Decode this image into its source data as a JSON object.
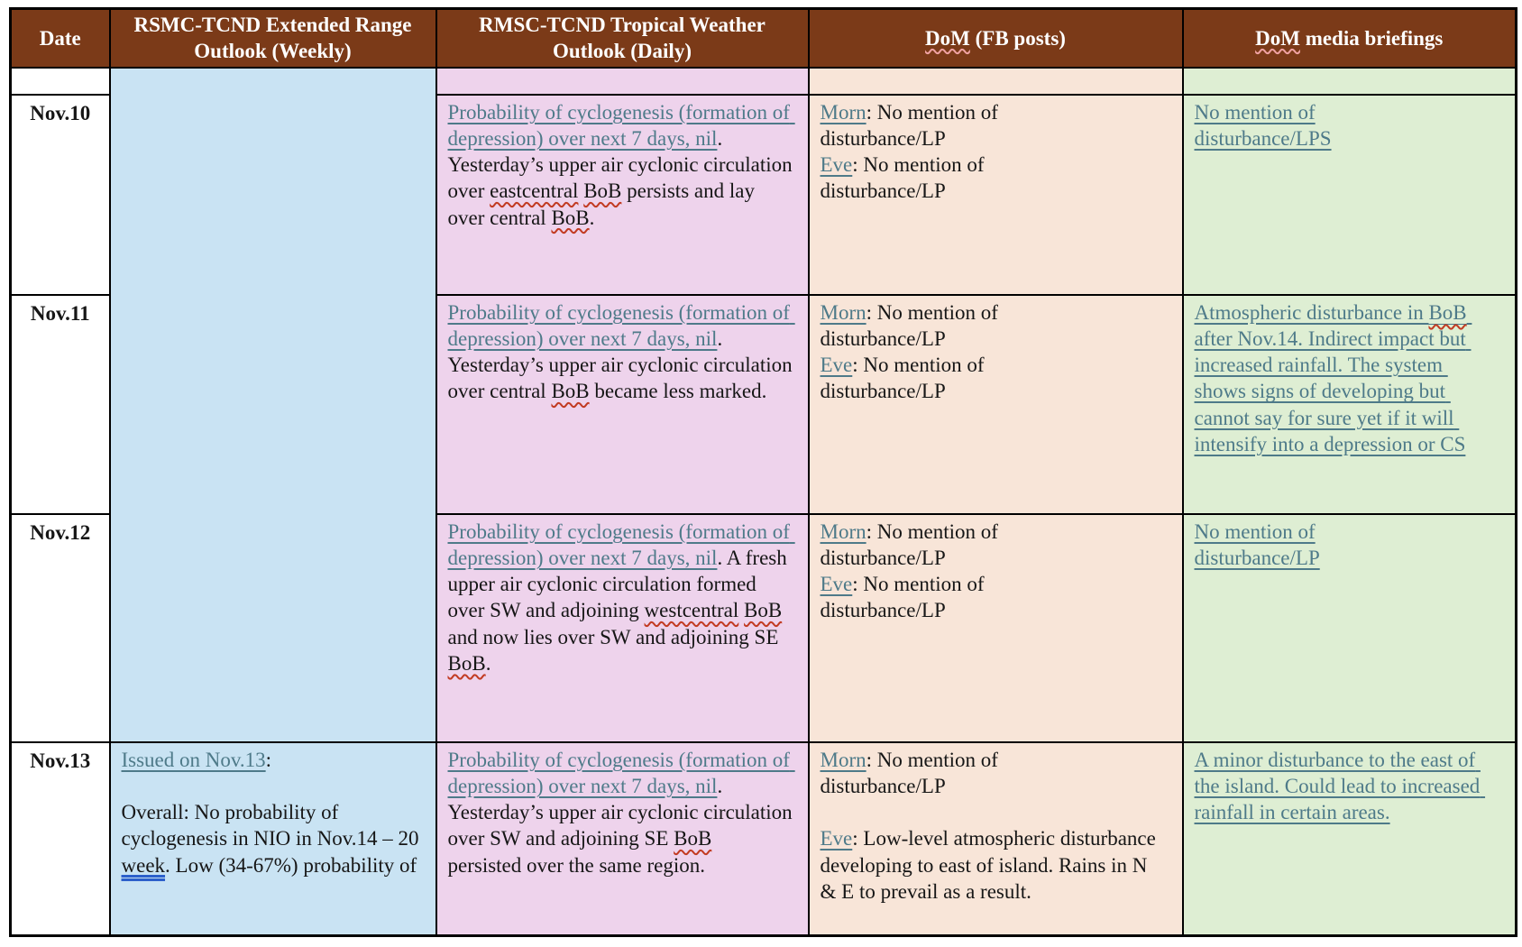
{
  "colors": {
    "header_bg": "#7b3a18",
    "header_text": "#ffffff",
    "col_weekly_bg": "#c9e3f3",
    "col_daily_bg": "#eed3ec",
    "col_fb_bg": "#f8e5d8",
    "col_media_bg": "#deeed3",
    "link_teal": "#4e7a89",
    "spell_red": "#c23b22",
    "gram_blue": "#2c5fcb",
    "border_black": "#000000"
  },
  "table": {
    "headers": [
      {
        "segments": [
          {
            "t": "Date",
            "s": "plain"
          }
        ]
      },
      {
        "segments": [
          {
            "t": "RSMC-TCND Extended Range Outlook (Weekly)",
            "s": "plain"
          }
        ]
      },
      {
        "segments": [
          {
            "t": "RMSC-TCND Tropical Weather Outlook (Daily)",
            "s": "plain"
          }
        ]
      },
      {
        "segments": [
          {
            "t": "DoM",
            "s": "sp"
          },
          {
            "t": " (FB posts)",
            "s": "plain"
          }
        ]
      },
      {
        "segments": [
          {
            "t": "DoM",
            "s": "sp"
          },
          {
            "t": " media briefings",
            "s": "plain"
          }
        ]
      }
    ],
    "rows": [
      {
        "date": "",
        "weekly": [],
        "daily": [],
        "fb": [],
        "media": []
      },
      {
        "date": "Nov.10",
        "daily": [
          {
            "t": "Probability of cyclogenesis (formation of depression) over next 7 days, nil",
            "s": "link"
          },
          {
            "t": ". Yesterday’s upper air cyclonic circulation over ",
            "s": "plain"
          },
          {
            "t": "eastcentral",
            "s": "sp"
          },
          {
            "t": " ",
            "s": "plain"
          },
          {
            "t": "BoB",
            "s": "sp"
          },
          {
            "t": " persists and lay over central ",
            "s": "plain"
          },
          {
            "t": "BoB",
            "s": "sp"
          },
          {
            "t": ".",
            "s": "plain"
          }
        ],
        "fb": [
          {
            "t": "Morn",
            "s": "link"
          },
          {
            "t": ": No mention of",
            "s": "plain"
          },
          {
            "s": "br"
          },
          {
            "t": "disturbance/LP",
            "s": "plain"
          },
          {
            "s": "br"
          },
          {
            "t": "Eve",
            "s": "link"
          },
          {
            "t": ": No mention of",
            "s": "plain"
          },
          {
            "s": "br"
          },
          {
            "t": "disturbance/LP",
            "s": "plain"
          }
        ],
        "media": [
          {
            "t": "No mention of",
            "s": "link"
          },
          {
            "s": "br"
          },
          {
            "t": "disturbance/LPS",
            "s": "link"
          }
        ]
      },
      {
        "date": "Nov.11",
        "daily": [
          {
            "t": "Probability of cyclogenesis (formation of depression) over next 7 days, nil",
            "s": "link"
          },
          {
            "t": ". Yesterday’s upper air cyclonic circulation over central ",
            "s": "plain"
          },
          {
            "t": "BoB",
            "s": "sp"
          },
          {
            "t": " became less marked.",
            "s": "plain"
          }
        ],
        "fb": [
          {
            "t": "Morn",
            "s": "link"
          },
          {
            "t": ": No mention of",
            "s": "plain"
          },
          {
            "s": "br"
          },
          {
            "t": "disturbance/LP",
            "s": "plain"
          },
          {
            "s": "br"
          },
          {
            "t": "Eve",
            "s": "link"
          },
          {
            "t": ": No mention of",
            "s": "plain"
          },
          {
            "s": "br"
          },
          {
            "t": "disturbance/LP",
            "s": "plain"
          }
        ],
        "media": [
          {
            "t": "Atmospheric disturbance in ",
            "s": "link"
          },
          {
            "t": "BoB",
            "s": "link-sp"
          },
          {
            "t": " after Nov.14. Indirect impact but increased rainfall. The system shows signs of developing but cannot say for sure yet if it will intensify into a depression or CS",
            "s": "link"
          }
        ]
      },
      {
        "date": "Nov.12",
        "daily": [
          {
            "t": "Probability of cyclogenesis (formation of depression) over next 7 days, nil",
            "s": "link"
          },
          {
            "t": ". A fresh upper air cyclonic circulation formed over SW and adjoining ",
            "s": "plain"
          },
          {
            "t": "westcentral",
            "s": "sp"
          },
          {
            "t": " ",
            "s": "plain"
          },
          {
            "t": "BoB",
            "s": "sp"
          },
          {
            "t": " and now lies over SW and adjoining SE ",
            "s": "plain"
          },
          {
            "t": "BoB",
            "s": "sp"
          },
          {
            "t": ".",
            "s": "plain"
          }
        ],
        "fb": [
          {
            "t": "Morn",
            "s": "link"
          },
          {
            "t": ": No mention of",
            "s": "plain"
          },
          {
            "s": "br"
          },
          {
            "t": "disturbance/LP",
            "s": "plain"
          },
          {
            "s": "br"
          },
          {
            "t": "Eve",
            "s": "link"
          },
          {
            "t": ": No mention of",
            "s": "plain"
          },
          {
            "s": "br"
          },
          {
            "t": "disturbance/LP",
            "s": "plain"
          }
        ],
        "media": [
          {
            "t": "No mention of",
            "s": "link"
          },
          {
            "s": "br"
          },
          {
            "t": "disturbance/LP",
            "s": "link"
          }
        ]
      },
      {
        "date": "Nov.13",
        "weekly": [
          {
            "t": "Issued on Nov.13",
            "s": "link"
          },
          {
            "t": ":",
            "s": "plain"
          },
          {
            "s": "br"
          },
          {
            "s": "br"
          },
          {
            "t": "Overall: No probability of cyclogenesis in NIO in Nov.14 – 20 ",
            "s": "plain"
          },
          {
            "t": "week",
            "s": "gr"
          },
          {
            "t": ". Low (34-67%) probability of",
            "s": "plain"
          }
        ],
        "daily": [
          {
            "t": "Probability of cyclogenesis (formation of depression) over next 7 days, nil",
            "s": "link"
          },
          {
            "t": ". Yesterday’s upper air cyclonic circulation over SW and adjoining SE ",
            "s": "plain"
          },
          {
            "t": "BoB",
            "s": "sp"
          },
          {
            "s": "br"
          },
          {
            "t": "persisted over the same region.",
            "s": "plain"
          }
        ],
        "fb": [
          {
            "t": "Morn",
            "s": "link"
          },
          {
            "t": ": No mention of",
            "s": "plain"
          },
          {
            "s": "br"
          },
          {
            "t": "disturbance/LP",
            "s": "plain"
          },
          {
            "s": "br"
          },
          {
            "s": "br"
          },
          {
            "t": "Eve",
            "s": "link"
          },
          {
            "t": ": Low-level atmospheric disturbance developing to east of island. Rains in N & E to prevail as a result.",
            "s": "plain"
          }
        ],
        "media": [
          {
            "t": "A minor disturbance to the east of the island. Could lead to increased rainfall in certain areas.",
            "s": "link"
          }
        ]
      }
    ]
  }
}
